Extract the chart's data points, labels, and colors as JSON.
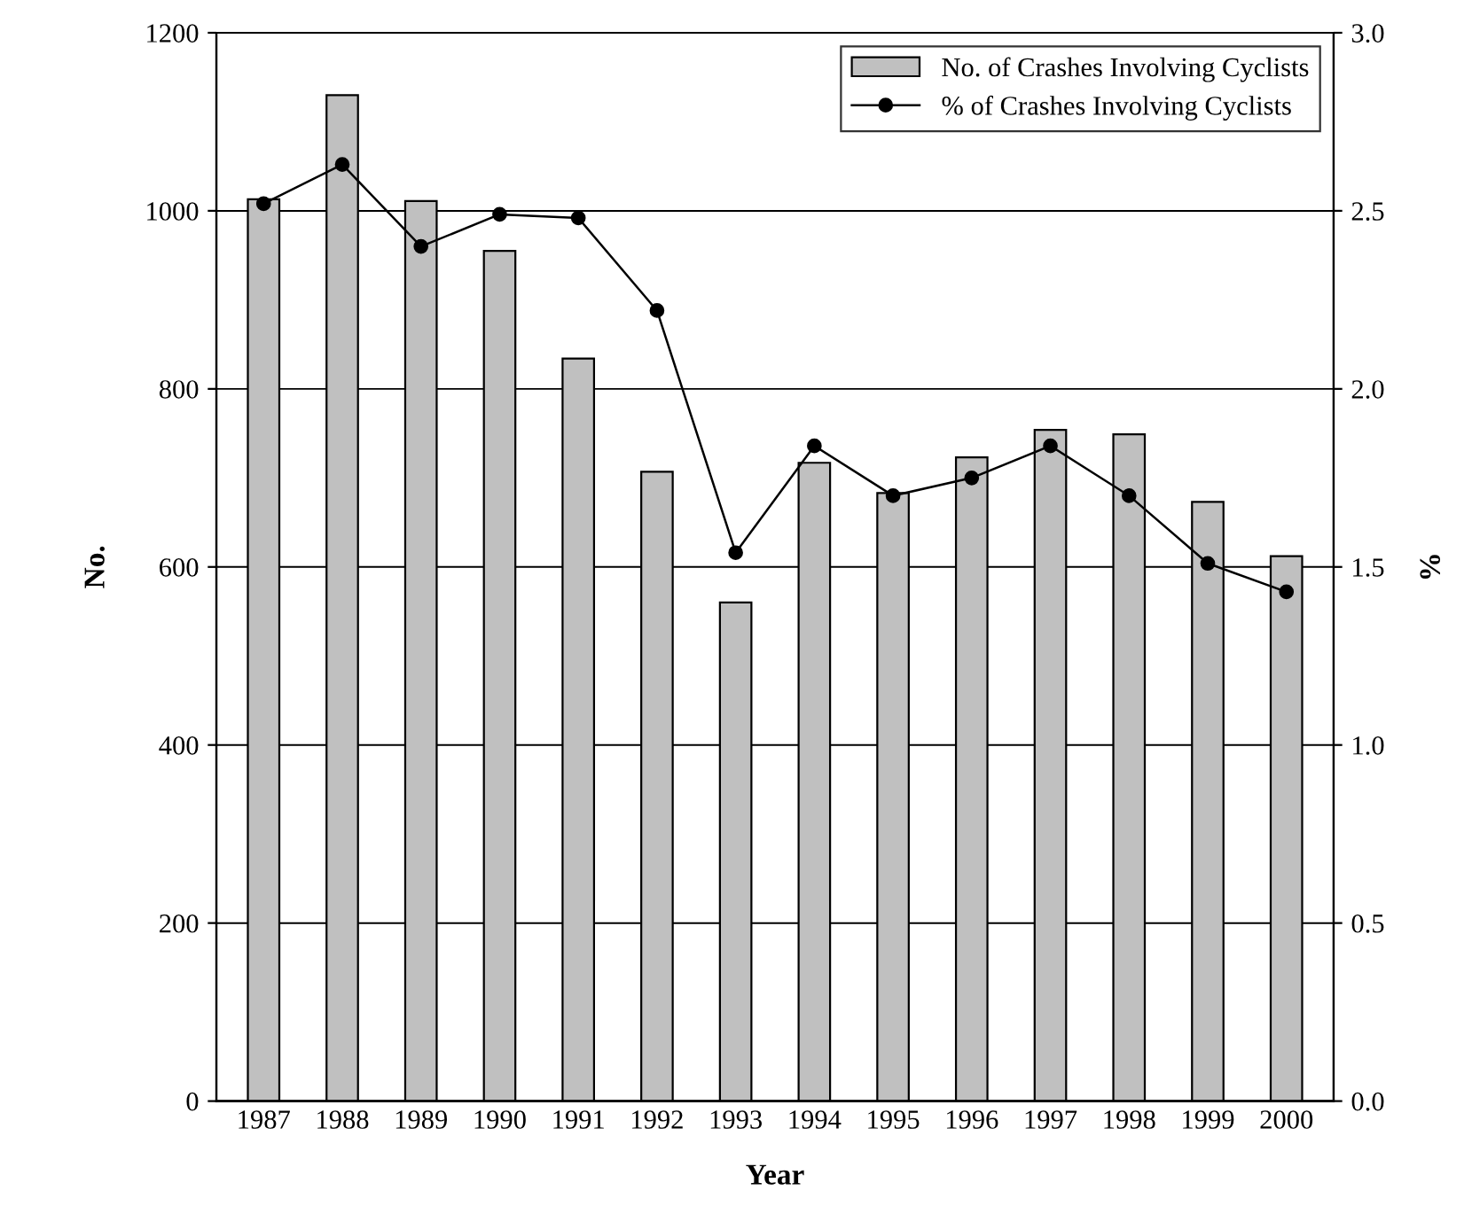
{
  "chart_data": {
    "type": "bar",
    "xlabel": "Year",
    "ylabel": "No.",
    "y2label": "%",
    "categories": [
      "1987",
      "1988",
      "1989",
      "1990",
      "1991",
      "1992",
      "1993",
      "1994",
      "1995",
      "1996",
      "1997",
      "1998",
      "1999",
      "2000"
    ],
    "series": [
      {
        "name": "No. of Crashes Involving Cyclists",
        "color": "#c0c0c0",
        "values": [
          1013,
          1130,
          1011,
          955,
          834,
          707,
          560,
          717,
          683,
          723,
          754,
          749,
          673,
          612
        ]
      },
      {
        "name": "% of Crashes Involving Cyclists",
        "type": "line",
        "axis": "y2",
        "color": "#000000",
        "marker": "circle",
        "values": [
          2.52,
          2.63,
          2.4,
          2.49,
          2.48,
          2.22,
          1.54,
          1.84,
          1.7,
          1.75,
          1.84,
          1.7,
          1.51,
          1.43
        ]
      }
    ],
    "ylim": [
      0,
      1200
    ],
    "yticks": [
      0,
      200,
      400,
      600,
      800,
      1000,
      1200
    ],
    "y2lim": [
      0,
      3
    ],
    "y2ticks": [
      {
        "value": 0,
        "label": "0.0"
      },
      {
        "value": 0.5,
        "label": "0.5"
      },
      {
        "value": 1,
        "label": "1.0"
      },
      {
        "value": 1.5,
        "label": "1.5"
      },
      {
        "value": 2,
        "label": "2.0"
      },
      {
        "value": 2.5,
        "label": "2.5"
      },
      {
        "value": 3,
        "label": "3.0"
      }
    ],
    "grid": "y",
    "legend": "top right"
  }
}
